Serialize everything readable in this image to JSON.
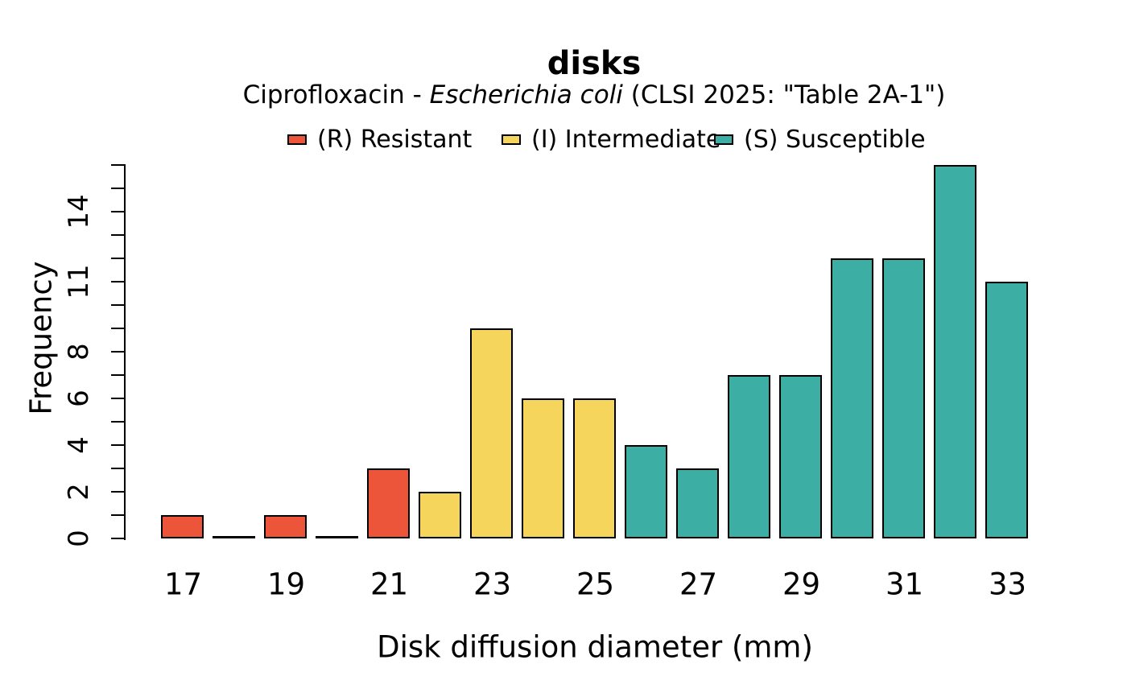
{
  "header": {
    "title": "disks",
    "subtitle_prefix": "Ciprofloxacin - ",
    "subtitle_italic": "Escherichia coli",
    "subtitle_suffix": " (CLSI 2025: \"Table 2A-1\")"
  },
  "legend": {
    "items": [
      {
        "label": "(R) Resistant",
        "color": "#ED553B"
      },
      {
        "label": "(I) Intermediate",
        "color": "#F6D55C"
      },
      {
        "label": "(S) Susceptible",
        "color": "#3CAEA3"
      }
    ]
  },
  "chart_data": {
    "type": "bar",
    "title": "disks",
    "subtitle": "Ciprofloxacin - Escherichia coli (CLSI 2025: \"Table 2A-1\")",
    "xlabel": "Disk diffusion diameter (mm)",
    "ylabel": "Frequency",
    "x": [
      17,
      18,
      19,
      20,
      21,
      22,
      23,
      24,
      25,
      26,
      27,
      28,
      29,
      30,
      31,
      32,
      33
    ],
    "values": [
      1,
      0,
      1,
      0,
      3,
      2,
      9,
      6,
      6,
      4,
      3,
      7,
      7,
      12,
      12,
      16,
      11
    ],
    "sir": [
      "R",
      "R",
      "R",
      "R",
      "R",
      "I",
      "I",
      "I",
      "I",
      "S",
      "S",
      "S",
      "S",
      "S",
      "S",
      "S",
      "S"
    ],
    "colors": {
      "R": "#ED553B",
      "I": "#F6D55C",
      "S": "#3CAEA3"
    },
    "x_tick_labels": [
      17,
      19,
      21,
      23,
      25,
      27,
      29,
      31,
      33
    ],
    "y_tick_labels": [
      0,
      2,
      4,
      6,
      8,
      11,
      14
    ],
    "ylim": [
      0,
      16
    ],
    "grid": false,
    "legend_position": "top",
    "legend": [
      "(R) Resistant",
      "(I) Intermediate",
      "(S) Susceptible"
    ],
    "bar_border_color": "#000000"
  }
}
